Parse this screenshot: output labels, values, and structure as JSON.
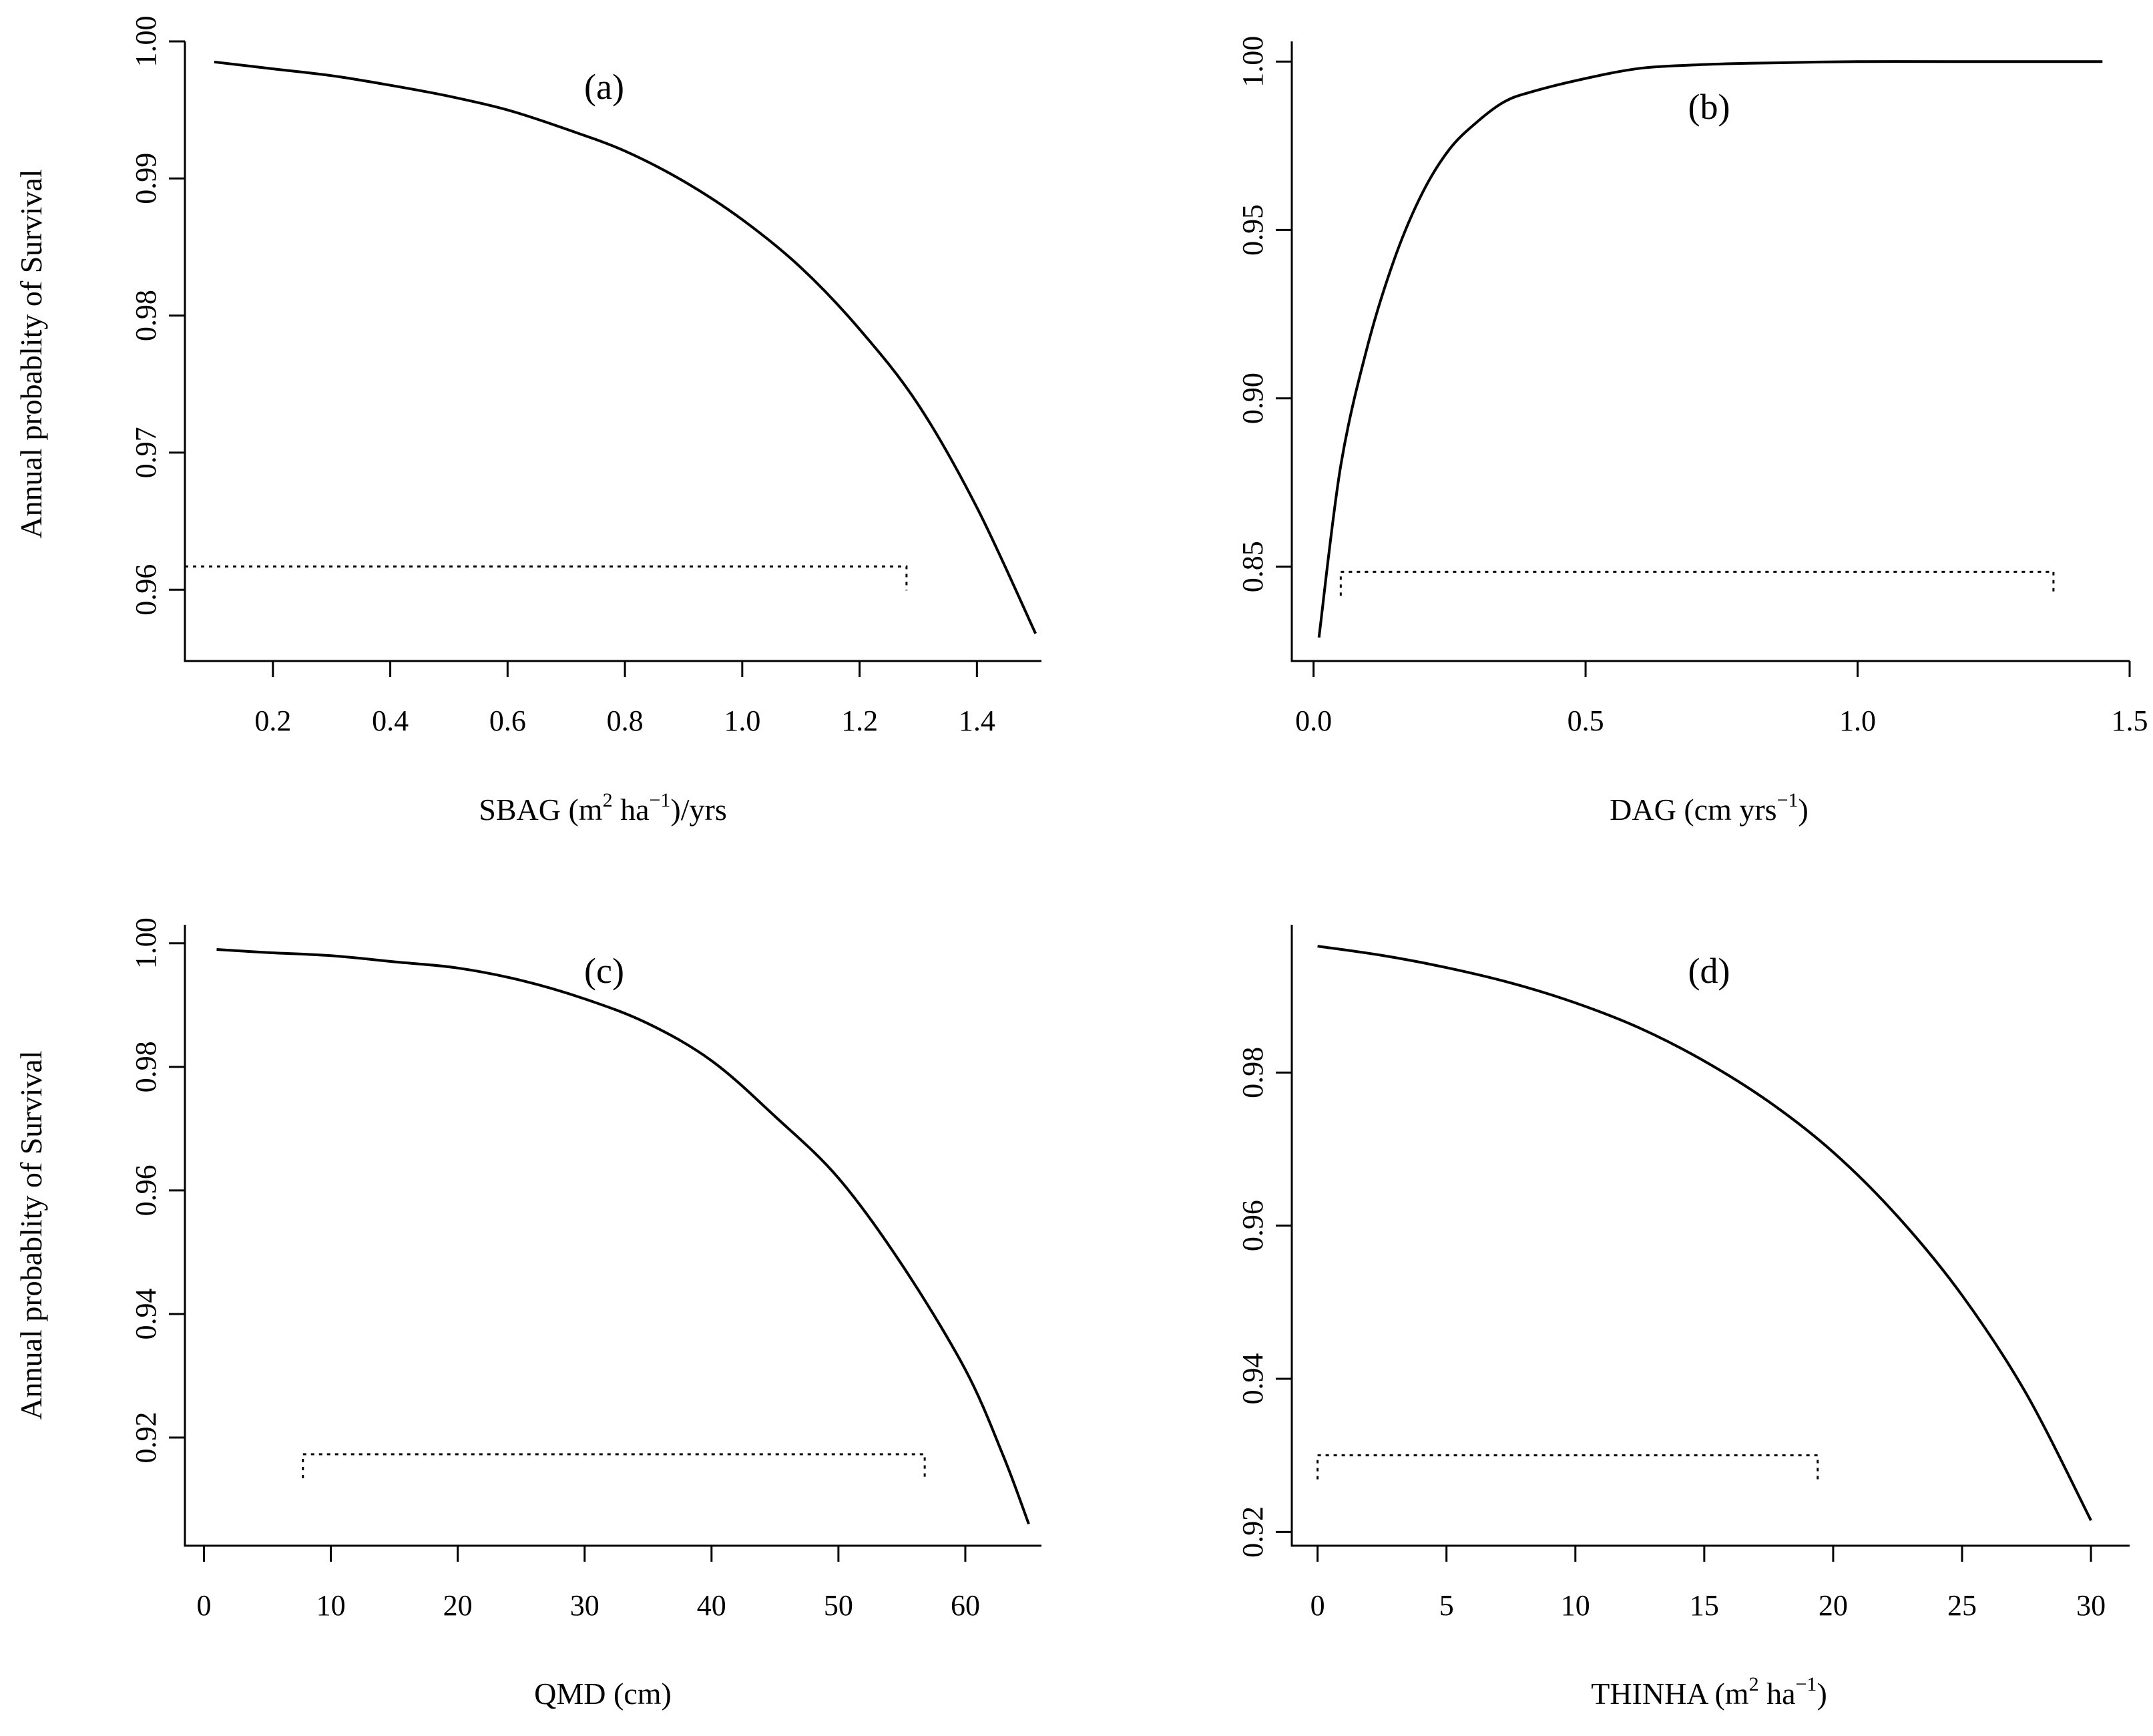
{
  "figure": {
    "ylabel": "Annual probablity of Survival"
  },
  "chart_data": [
    {
      "type": "line",
      "panel_label": "(a)",
      "xlabel": {
        "base": "SBAG (m",
        "sup1": "2",
        "mid": " ha",
        "sup2": "−1",
        "tail": ")/yrs"
      },
      "xlim": [
        0.05,
        1.51
      ],
      "ylim": [
        0.9548,
        1.0
      ],
      "xticks": [
        0.2,
        0.4,
        0.6,
        0.8,
        1.0,
        1.2,
        1.4
      ],
      "xtick_labels": [
        "0.2",
        "0.4",
        "0.6",
        "0.8",
        "1.0",
        "1.2",
        "1.4"
      ],
      "yticks": [
        0.96,
        0.97,
        0.98,
        0.99,
        1.0
      ],
      "ytick_labels": [
        "0.96",
        "0.97",
        "0.98",
        "0.99",
        "1.00"
      ],
      "series": [
        {
          "x": [
            0.1,
            0.2,
            0.3,
            0.4,
            0.5,
            0.6,
            0.7,
            0.8,
            0.9,
            1.0,
            1.1,
            1.2,
            1.3,
            1.4,
            1.5
          ],
          "y": [
            0.9985,
            0.998,
            0.9975,
            0.9968,
            0.996,
            0.995,
            0.9936,
            0.992,
            0.9898,
            0.987,
            0.9835,
            0.979,
            0.9735,
            0.966,
            0.9568
          ]
        }
      ],
      "range_bar": {
        "x": [
          0.05,
          1.28
        ],
        "y": 0.9617
      }
    },
    {
      "type": "line",
      "panel_label": "(b)",
      "xlabel": {
        "base": "DAG (cm yrs",
        "sup1": "−1",
        "mid": "",
        "sup2": "",
        "tail": ")"
      },
      "xlim": [
        -0.04,
        1.5
      ],
      "ylim": [
        0.822,
        1.006
      ],
      "xticks": [
        0.0,
        0.5,
        1.0,
        1.5
      ],
      "xtick_labels": [
        "0.0",
        "0.5",
        "1.0",
        "1.5"
      ],
      "yticks": [
        0.85,
        0.9,
        0.95,
        1.0
      ],
      "ytick_labels": [
        "0.85",
        "0.90",
        "0.95",
        "1.00"
      ],
      "series": [
        {
          "x": [
            0.01,
            0.05,
            0.1,
            0.15,
            0.2,
            0.25,
            0.3,
            0.35,
            0.4,
            0.5,
            0.6,
            0.7,
            0.8,
            1.0,
            1.2,
            1.45
          ],
          "y": [
            0.829,
            0.88,
            0.916,
            0.942,
            0.961,
            0.974,
            0.982,
            0.988,
            0.991,
            0.995,
            0.998,
            0.999,
            0.9995,
            1.0,
            1.0,
            1.0
          ]
        }
      ],
      "range_bar": {
        "x": [
          0.05,
          1.36
        ],
        "y": 0.8485
      }
    },
    {
      "type": "line",
      "panel_label": "(c)",
      "xlabel": {
        "base": "QMD (cm)",
        "sup1": "",
        "mid": "",
        "sup2": "",
        "tail": ""
      },
      "xlim": [
        -1.5,
        66
      ],
      "ylim": [
        0.9025,
        1.003
      ],
      "xticks": [
        0,
        10,
        20,
        30,
        40,
        50,
        60
      ],
      "xtick_labels": [
        "0",
        "10",
        "20",
        "30",
        "40",
        "50",
        "60"
      ],
      "yticks": [
        0.92,
        0.94,
        0.96,
        0.98,
        1.0
      ],
      "ytick_labels": [
        "0.92",
        "0.94",
        "0.96",
        "0.98",
        "1.00"
      ],
      "series": [
        {
          "x": [
            1,
            5,
            10,
            15,
            20,
            25,
            30,
            35,
            40,
            45,
            50,
            55,
            60,
            63,
            65
          ],
          "y": [
            0.999,
            0.9985,
            0.998,
            0.997,
            0.996,
            0.994,
            0.991,
            0.987,
            0.981,
            0.972,
            0.962,
            0.948,
            0.931,
            0.917,
            0.906
          ]
        }
      ],
      "range_bar": {
        "x": [
          7.8,
          56.8
        ],
        "y": 0.9173
      }
    },
    {
      "type": "line",
      "panel_label": "(d)",
      "xlabel": {
        "base": "THINHA (m",
        "sup1": "2",
        "mid": " ha",
        "sup2": "−1",
        "tail": ")"
      },
      "xlim": [
        -1.0,
        31.5
      ],
      "ylim": [
        0.9182,
        0.9993
      ],
      "xticks": [
        0,
        5,
        10,
        15,
        20,
        25,
        30
      ],
      "xtick_labels": [
        "0",
        "5",
        "10",
        "15",
        "20",
        "25",
        "30"
      ],
      "yticks": [
        0.92,
        0.94,
        0.96,
        0.98
      ],
      "ytick_labels": [
        "0.92",
        "0.94",
        "0.96",
        "0.98"
      ],
      "series": [
        {
          "x": [
            0,
            2.5,
            5,
            7.5,
            10,
            12.5,
            15,
            17.5,
            20,
            22.5,
            25,
            27.5,
            30
          ],
          "y": [
            0.9965,
            0.9953,
            0.9937,
            0.9917,
            0.9891,
            0.9858,
            0.9815,
            0.9762,
            0.9696,
            0.9612,
            0.9509,
            0.938,
            0.9215
          ]
        }
      ],
      "range_bar": {
        "x": [
          0,
          19.4
        ],
        "y": 0.93
      }
    }
  ]
}
